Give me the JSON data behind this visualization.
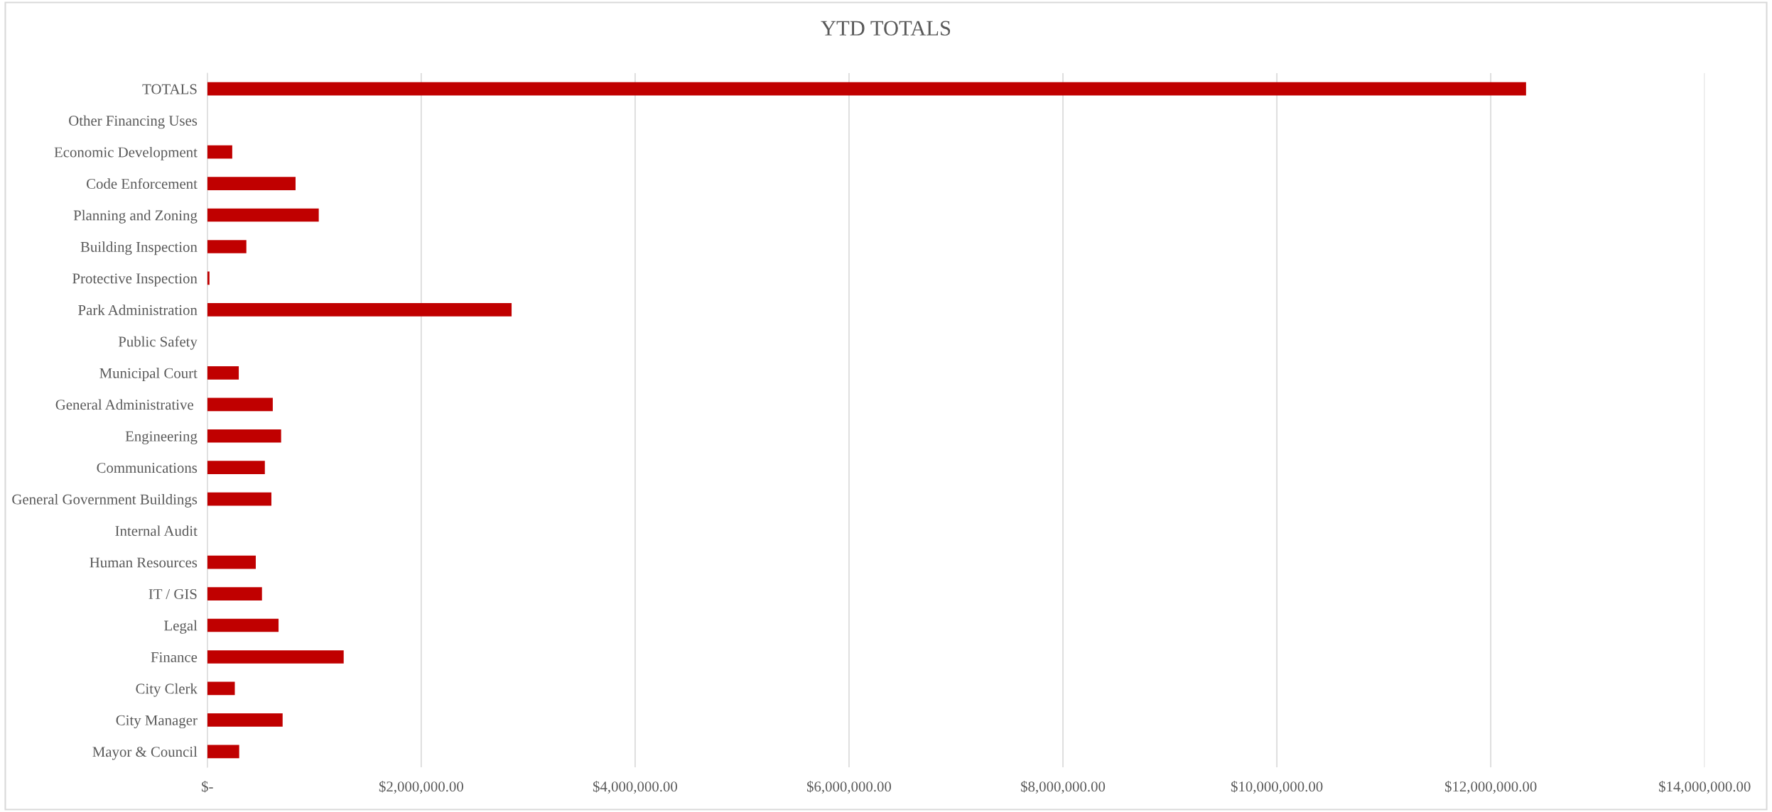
{
  "chart_data": {
    "type": "bar",
    "orientation": "horizontal",
    "title": "YTD TOTALS",
    "categories": [
      "TOTALS",
      "Other Financing Uses",
      "Economic Development",
      "Code Enforcement",
      "Planning and Zoning",
      "Building Inspection",
      "Protective Inspection",
      "Park Administration",
      "Public Safety",
      "Municipal Court",
      "General Administrative ",
      "Engineering",
      "Communications",
      "General Government Buildings",
      "Internal Audit",
      "Human Resources",
      "IT / GIS",
      "Legal",
      "Finance",
      "City Clerk",
      "City Manager",
      "Mayor & Council"
    ],
    "values": [
      12330000,
      0,
      233000,
      825000,
      1042000,
      365000,
      20000,
      2845000,
      0,
      294000,
      612000,
      690000,
      538000,
      599000,
      0,
      453000,
      511000,
      666000,
      1275000,
      257000,
      704000,
      298000
    ],
    "color": "#c00000",
    "xlim": [
      0,
      14000000
    ],
    "xticks": [
      {
        "value": 0,
        "label": "$-"
      },
      {
        "value": 2000000,
        "label": "$2,000,000.00"
      },
      {
        "value": 4000000,
        "label": "$4,000,000.00"
      },
      {
        "value": 6000000,
        "label": "$6,000,000.00"
      },
      {
        "value": 8000000,
        "label": "$8,000,000.00"
      },
      {
        "value": 10000000,
        "label": "$10,000,000.00"
      },
      {
        "value": 12000000,
        "label": "$12,000,000.00"
      },
      {
        "value": 14000000,
        "label": "$14,000,000.00"
      }
    ],
    "grid": "x",
    "legend": false
  }
}
